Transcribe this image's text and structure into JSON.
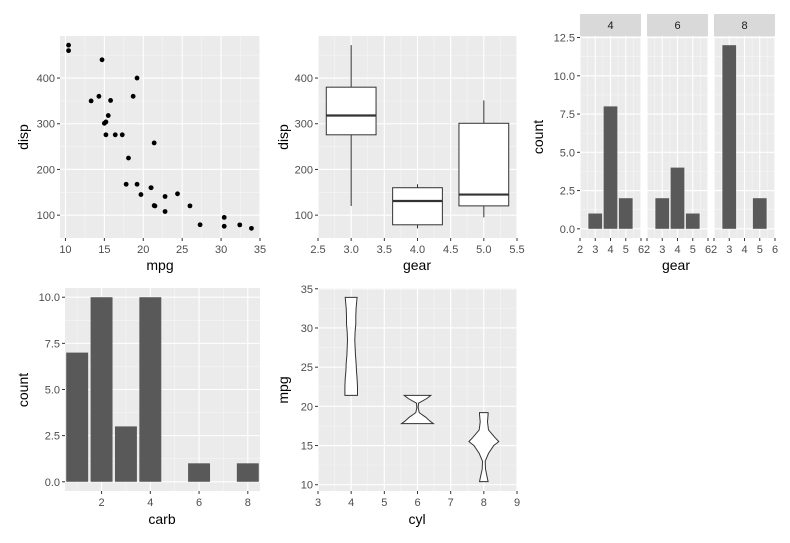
{
  "chart_data": [
    {
      "id": "scatter",
      "type": "scatter",
      "xlabel": "mpg",
      "ylabel": "disp",
      "xlim": [
        9.3,
        35.0
      ],
      "ylim": [
        50,
        492
      ],
      "xticks": [
        10,
        15,
        20,
        25,
        30,
        35
      ],
      "yticks": [
        100,
        200,
        300,
        400
      ],
      "points": [
        [
          21.0,
          160
        ],
        [
          21.0,
          160
        ],
        [
          22.8,
          108
        ],
        [
          21.4,
          258
        ],
        [
          18.7,
          360
        ],
        [
          18.1,
          225
        ],
        [
          14.3,
          360
        ],
        [
          24.4,
          146.7
        ],
        [
          22.8,
          140.8
        ],
        [
          19.2,
          167.6
        ],
        [
          17.8,
          167.6
        ],
        [
          16.4,
          275.8
        ],
        [
          17.3,
          275.8
        ],
        [
          15.2,
          275.8
        ],
        [
          10.4,
          472
        ],
        [
          10.4,
          460
        ],
        [
          14.7,
          440
        ],
        [
          32.4,
          78.7
        ],
        [
          30.4,
          75.7
        ],
        [
          33.9,
          71.1
        ],
        [
          21.5,
          120.1
        ],
        [
          15.5,
          318
        ],
        [
          15.2,
          304
        ],
        [
          13.3,
          350
        ],
        [
          19.2,
          400
        ],
        [
          27.3,
          79
        ],
        [
          26.0,
          120.3
        ],
        [
          30.4,
          95.1
        ],
        [
          15.8,
          351
        ],
        [
          19.7,
          145
        ],
        [
          15.0,
          301
        ],
        [
          21.4,
          121
        ]
      ]
    },
    {
      "id": "boxplot",
      "type": "box",
      "xlabel": "gear",
      "ylabel": "disp",
      "xlim": [
        2.5,
        5.5
      ],
      "ylim": [
        50,
        492
      ],
      "xticks": [
        "2.5",
        "3.0",
        "3.5",
        "4.0",
        "4.5",
        "5.0",
        "5.5"
      ],
      "yticks": [
        100,
        200,
        300,
        400
      ],
      "boxes": [
        {
          "x": 3,
          "min": 120.1,
          "q1": 275.8,
          "median": 318,
          "q3": 380,
          "max": 472
        },
        {
          "x": 4,
          "min": 71.1,
          "q1": 78.9,
          "median": 130.9,
          "q3": 160,
          "max": 167.6
        },
        {
          "x": 5,
          "min": 95.1,
          "q1": 120.3,
          "median": 145,
          "q3": 301,
          "max": 351
        }
      ]
    },
    {
      "id": "facet_bars",
      "type": "bar",
      "xlabel": "gear",
      "ylabel": "count",
      "xlim": [
        2,
        6
      ],
      "ylim": [
        -0.6,
        12.6
      ],
      "xticks": [
        "2",
        "3",
        "4",
        "5",
        "6"
      ],
      "yticks": [
        "0.0",
        "2.5",
        "5.0",
        "7.5",
        "10.0",
        "12.5"
      ],
      "facets": [
        {
          "label": "4",
          "categories": [
            "3",
            "4",
            "5"
          ],
          "values": [
            1,
            8,
            2
          ]
        },
        {
          "label": "6",
          "categories": [
            "3",
            "4",
            "5"
          ],
          "values": [
            2,
            4,
            1
          ]
        },
        {
          "label": "8",
          "categories": [
            "3",
            "5"
          ],
          "values": [
            12,
            2
          ]
        }
      ]
    },
    {
      "id": "carb_bars",
      "type": "bar",
      "xlabel": "carb",
      "ylabel": "count",
      "xlim": [
        0.5,
        8.5
      ],
      "ylim": [
        -0.5,
        10.5
      ],
      "xticks": [
        "2",
        "4",
        "6",
        "8"
      ],
      "yticks": [
        "0.0",
        "2.5",
        "5.0",
        "7.5",
        "10.0"
      ],
      "categories": [
        "1",
        "2",
        "3",
        "4",
        "6",
        "8"
      ],
      "values": [
        7,
        10,
        3,
        10,
        1,
        1
      ]
    },
    {
      "id": "violin",
      "type": "violin",
      "xlabel": "cyl",
      "ylabel": "mpg",
      "xlim": [
        3,
        9
      ],
      "ylim": [
        9.2,
        35.1
      ],
      "xticks": [
        "3",
        "4",
        "5",
        "6",
        "7",
        "8",
        "9"
      ],
      "yticks": [
        "10",
        "15",
        "20",
        "25",
        "30",
        "35"
      ],
      "violins": [
        {
          "x": 4,
          "profile": [
            [
              21.4,
              0.19
            ],
            [
              22.5,
              0.19
            ],
            [
              23.5,
              0.18
            ],
            [
              24.5,
              0.16
            ],
            [
              25.5,
              0.15
            ],
            [
              26.5,
              0.13
            ],
            [
              27.5,
              0.12
            ],
            [
              28.5,
              0.11
            ],
            [
              29.5,
              0.12
            ],
            [
              30.5,
              0.14
            ],
            [
              31.5,
              0.14
            ],
            [
              32.5,
              0.15
            ],
            [
              33.5,
              0.17
            ],
            [
              33.9,
              0.18
            ]
          ]
        },
        {
          "x": 6,
          "profile": [
            [
              17.8,
              0.48
            ],
            [
              18.1,
              0.38
            ],
            [
              18.6,
              0.25
            ],
            [
              19.2,
              0.05
            ],
            [
              19.8,
              0.02
            ],
            [
              20.4,
              0.03
            ],
            [
              21.0,
              0.28
            ],
            [
              21.4,
              0.4
            ]
          ]
        },
        {
          "x": 8,
          "profile": [
            [
              10.4,
              0.13
            ],
            [
              11.0,
              0.1
            ],
            [
              12.0,
              0.05
            ],
            [
              13.0,
              0.04
            ],
            [
              14.0,
              0.14
            ],
            [
              15.0,
              0.3
            ],
            [
              15.5,
              0.45
            ],
            [
              16.0,
              0.34
            ],
            [
              17.0,
              0.14
            ],
            [
              18.0,
              0.11
            ],
            [
              19.0,
              0.13
            ],
            [
              19.2,
              0.13
            ]
          ]
        }
      ]
    }
  ]
}
